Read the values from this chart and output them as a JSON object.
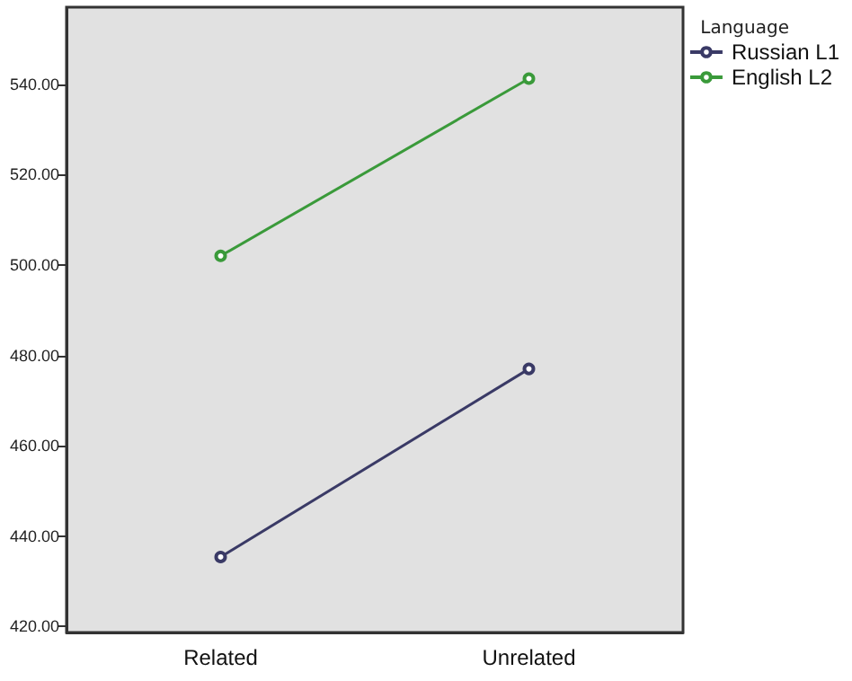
{
  "chart_data": {
    "type": "line",
    "categories": [
      "Related",
      "Unrelated"
    ],
    "series": [
      {
        "name": "Russian L1",
        "color": "#3a3a66",
        "values": [
          435.4,
          477
        ]
      },
      {
        "name": "English L2",
        "color": "#3a9a3a",
        "values": [
          502,
          541.2
        ]
      }
    ],
    "legend_title": "Language",
    "legend": "top right",
    "marker": "circle",
    "line_style": "solid",
    "grid": false,
    "ylim": [
      418.7,
      557
    ],
    "yticks": [
      {
        "value": 420,
        "label": "420.00"
      },
      {
        "value": 440,
        "label": "440.00"
      },
      {
        "value": 460,
        "label": "460.00"
      },
      {
        "value": 480,
        "label": "480.00"
      },
      {
        "value": 500,
        "label": "500.00"
      },
      {
        "value": 520,
        "label": "520.00"
      },
      {
        "value": 540,
        "label": "540.00"
      }
    ]
  }
}
